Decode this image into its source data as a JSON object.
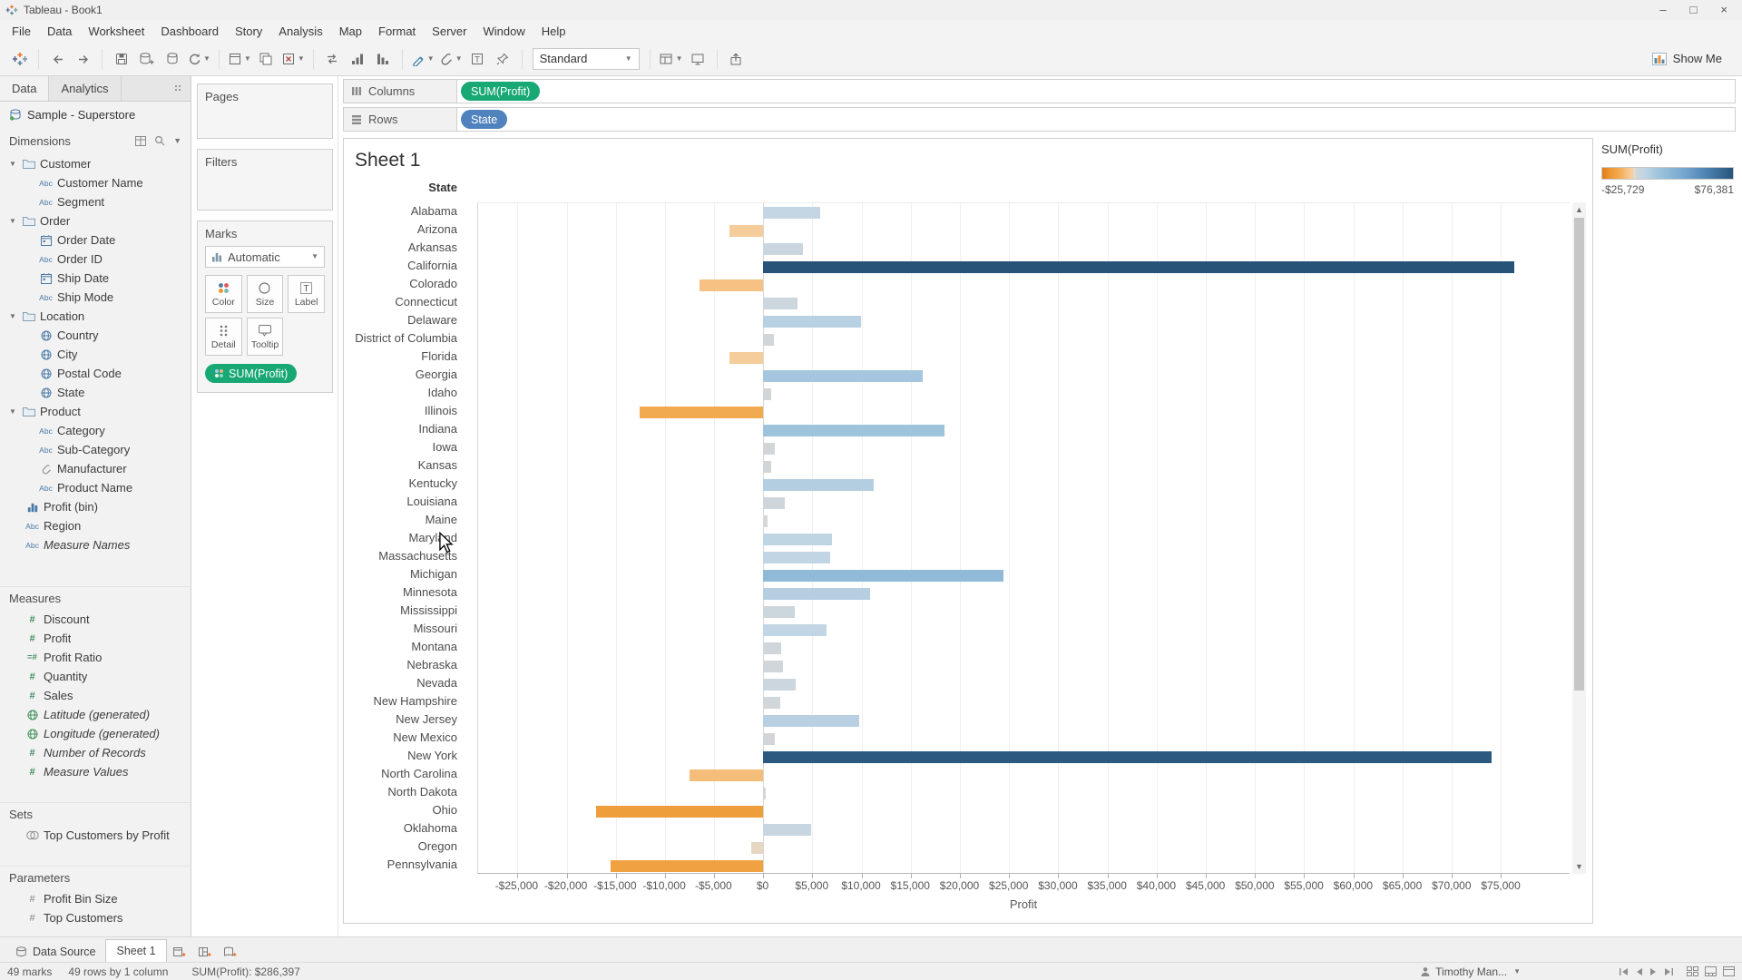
{
  "window": {
    "title": "Tableau - Book1",
    "controls": {
      "minimize": "–",
      "maximize": "□",
      "close": "×"
    }
  },
  "menu": {
    "items": [
      "File",
      "Data",
      "Worksheet",
      "Dashboard",
      "Story",
      "Analysis",
      "Map",
      "Format",
      "Server",
      "Window",
      "Help"
    ]
  },
  "toolbar": {
    "fit_mode": "Standard",
    "show_me_label": "Show Me"
  },
  "sidebar": {
    "tabs": [
      {
        "label": "Data"
      },
      {
        "label": "Analytics"
      }
    ],
    "datasource": "Sample - Superstore",
    "sections": {
      "dimensions": {
        "header": "Dimensions",
        "fields": [
          {
            "label": "Customer",
            "icon": "folder",
            "kind": "folder"
          },
          {
            "label": "Customer Name",
            "icon": "abc",
            "indent": 1
          },
          {
            "label": "Segment",
            "icon": "abc",
            "indent": 1
          },
          {
            "label": "Order",
            "icon": "folder",
            "kind": "folder"
          },
          {
            "label": "Order Date",
            "icon": "calendar",
            "indent": 1
          },
          {
            "label": "Order ID",
            "icon": "abc",
            "indent": 1
          },
          {
            "label": "Ship Date",
            "icon": "calendar",
            "indent": 1
          },
          {
            "label": "Ship Mode",
            "icon": "abc",
            "indent": 1
          },
          {
            "label": "Location",
            "icon": "folder",
            "kind": "folder"
          },
          {
            "label": "Country",
            "icon": "globe",
            "indent": 1
          },
          {
            "label": "City",
            "icon": "globe",
            "indent": 1
          },
          {
            "label": "Postal Code",
            "icon": "globe",
            "indent": 1
          },
          {
            "label": "State",
            "icon": "globe",
            "indent": 1
          },
          {
            "label": "Product",
            "icon": "folder",
            "kind": "folder"
          },
          {
            "label": "Category",
            "icon": "abc",
            "indent": 1
          },
          {
            "label": "Sub-Category",
            "icon": "abc",
            "indent": 1
          },
          {
            "label": "Manufacturer",
            "icon": "clip",
            "indent": 1
          },
          {
            "label": "Product Name",
            "icon": "abc",
            "indent": 1
          },
          {
            "label": "Profit (bin)",
            "icon": "bin"
          },
          {
            "label": "Region",
            "icon": "abc"
          },
          {
            "label": "Measure Names",
            "icon": "abc",
            "italic": true
          }
        ]
      },
      "measures": {
        "header": "Measures",
        "fields": [
          {
            "label": "Discount",
            "icon": "hash"
          },
          {
            "label": "Profit",
            "icon": "hash"
          },
          {
            "label": "Profit Ratio",
            "icon": "hash-calc"
          },
          {
            "label": "Quantity",
            "icon": "hash"
          },
          {
            "label": "Sales",
            "icon": "hash"
          },
          {
            "label": "Latitude (generated)",
            "icon": "globe-green",
            "italic": true
          },
          {
            "label": "Longitude (generated)",
            "icon": "globe-green",
            "italic": true
          },
          {
            "label": "Number of Records",
            "icon": "hash",
            "italic": true
          },
          {
            "label": "Measure Values",
            "icon": "hash",
            "italic": true
          }
        ]
      },
      "sets": {
        "header": "Sets",
        "fields": [
          {
            "label": "Top Customers by Profit",
            "icon": "venn"
          }
        ]
      },
      "parameters": {
        "header": "Parameters",
        "fields": [
          {
            "label": "Profit Bin Size",
            "icon": "hash-param"
          },
          {
            "label": "Top Customers",
            "icon": "hash-param"
          }
        ]
      }
    }
  },
  "cards": {
    "pages": {
      "title": "Pages"
    },
    "filters": {
      "title": "Filters"
    },
    "marks": {
      "title": "Marks",
      "mark_type": "Automatic",
      "buttons": [
        {
          "label": "Color",
          "icon": "color"
        },
        {
          "label": "Size",
          "icon": "size"
        },
        {
          "label": "Label",
          "icon": "label"
        },
        {
          "label": "Detail",
          "icon": "detail"
        },
        {
          "label": "Tooltip",
          "icon": "tooltip"
        }
      ],
      "pills": [
        {
          "label": "SUM(Profit)",
          "color": "green"
        }
      ]
    }
  },
  "shelves": {
    "columns": {
      "label": "Columns",
      "pills": [
        {
          "label": "SUM(Profit)",
          "color": "green"
        }
      ]
    },
    "rows": {
      "label": "Rows",
      "pills": [
        {
          "label": "State",
          "color": "blue"
        }
      ]
    }
  },
  "sheet": {
    "title": "Sheet 1"
  },
  "legend": {
    "title": "SUM(Profit)",
    "min_label": "-$25,729",
    "max_label": "$76,381"
  },
  "chart_data": {
    "type": "bar",
    "orientation": "horizontal",
    "title": "Sheet 1",
    "xlabel": "Profit",
    "ylabel": "State",
    "categories": [
      "Alabama",
      "Arizona",
      "Arkansas",
      "California",
      "Colorado",
      "Connecticut",
      "Delaware",
      "District of Columbia",
      "Florida",
      "Georgia",
      "Idaho",
      "Illinois",
      "Indiana",
      "Iowa",
      "Kansas",
      "Kentucky",
      "Louisiana",
      "Maine",
      "Maryland",
      "Massachusetts",
      "Michigan",
      "Minnesota",
      "Mississippi",
      "Missouri",
      "Montana",
      "Nebraska",
      "Nevada",
      "New Hampshire",
      "New Jersey",
      "New Mexico",
      "New York",
      "North Carolina",
      "North Dakota",
      "Ohio",
      "Oklahoma",
      "Oregon",
      "Pennsylvania"
    ],
    "values": [
      5787,
      -3428,
      4009,
      76381,
      -6528,
      3511,
      9977,
      1060,
      -3399,
      16250,
      826,
      -12608,
      18383,
      1184,
      836,
      11199,
      2196,
      454,
      7031,
      6786,
      24463,
      10823,
      3173,
      6436,
      1833,
      2037,
      3317,
      1707,
      9772,
      1157,
      74039,
      -7491,
      230,
      -16971,
      4854,
      -1191,
      -15560
    ],
    "xlim": [
      -29000,
      82000
    ],
    "xticks": [
      -25000,
      -20000,
      -15000,
      -10000,
      -5000,
      0,
      5000,
      10000,
      15000,
      20000,
      25000,
      30000,
      35000,
      40000,
      45000,
      50000,
      55000,
      60000,
      65000,
      70000,
      75000
    ],
    "xtick_labels": [
      "-$25,000",
      "-$20,000",
      "-$15,000",
      "-$10,000",
      "-$5,000",
      "$0",
      "$5,000",
      "$10,000",
      "$15,000",
      "$20,000",
      "$25,000",
      "$30,000",
      "$35,000",
      "$40,000",
      "$45,000",
      "$50,000",
      "$55,000",
      "$60,000",
      "$65,000",
      "$70,000",
      "$75,000"
    ],
    "grid": "vertical-light",
    "legend_position": "right",
    "color_scale": {
      "min": -25729,
      "max": 76381,
      "negative_stops": [
        [
          0,
          "#dcdcdc"
        ],
        [
          0.1,
          "#f3d0a1"
        ],
        [
          0.25,
          "#f6c183"
        ],
        [
          0.5,
          "#f2a94f"
        ],
        [
          0.75,
          "#ee9832"
        ],
        [
          1,
          "#e07c1c"
        ]
      ],
      "positive_stops": [
        [
          0,
          "#d6d6d6"
        ],
        [
          0.08,
          "#c3d6e4"
        ],
        [
          0.25,
          "#9cc2dc"
        ],
        [
          0.5,
          "#74a7cf"
        ],
        [
          0.75,
          "#4a80ae"
        ],
        [
          1,
          "#275379"
        ]
      ]
    }
  },
  "tabs_bar": {
    "data_source": "Data Source",
    "sheets": [
      "Sheet 1"
    ]
  },
  "status_bar": {
    "marks": "49 marks",
    "size": "49 rows by 1 column",
    "aggregate": "SUM(Profit): $286,397",
    "user": "Timothy Man..."
  },
  "colors": {
    "pill_green": "#17a874",
    "pill_blue": "#5082be",
    "dimension_blue": "#4a79a5",
    "measure_green": "#3f8e5a",
    "negative_orange": "#ee9832",
    "positive_dark_blue": "#275379"
  }
}
